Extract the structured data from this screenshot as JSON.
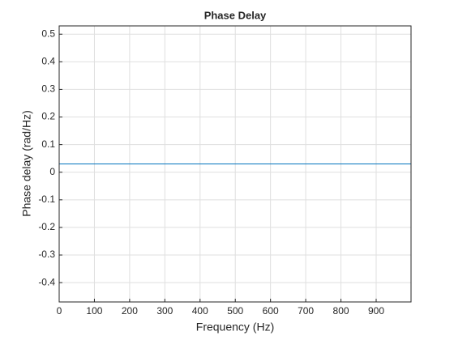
{
  "chart_data": {
    "type": "line",
    "title": "Phase Delay",
    "x_label": "Frequency (Hz)",
    "y_label": "Phase delay (rad/Hz)",
    "x": [
      0,
      999
    ],
    "series": [
      {
        "color": "#0072bd",
        "values": [
          0.03,
          0.03
        ]
      }
    ],
    "xlim": [
      0,
      999
    ],
    "xticks": [
      0,
      100,
      200,
      300,
      400,
      500,
      600,
      700,
      800,
      900
    ],
    "ylim": [
      -0.47,
      0.53
    ],
    "yticks": [
      -0.4,
      -0.3,
      -0.2,
      -0.1,
      0,
      0.1,
      0.2,
      0.3,
      0.4,
      0.5
    ],
    "grid": true
  }
}
